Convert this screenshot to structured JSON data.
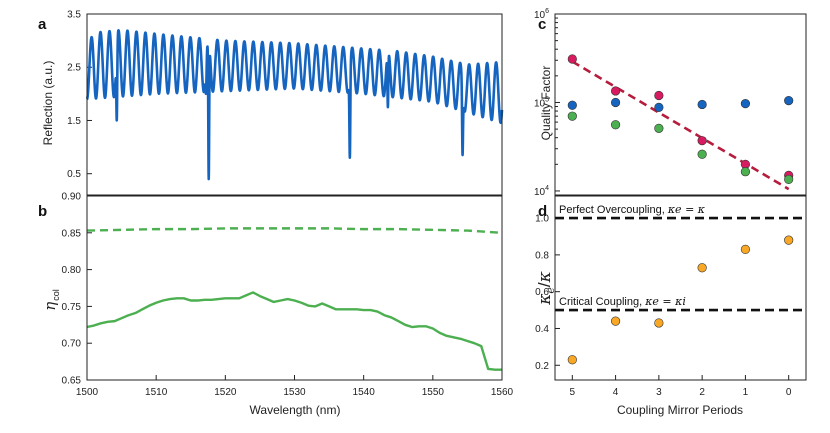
{
  "panel_letters": {
    "a": "a",
    "b": "b",
    "c": "c",
    "d": "d"
  },
  "chart_data": [
    {
      "id": "a",
      "type": "line",
      "ylabel": "Reflection (a.u.)",
      "xlim": [
        1500,
        1560
      ],
      "ylim": [
        0.1,
        3.5
      ],
      "yticks": [
        "0.5",
        "1.5",
        "2.5",
        "3.5"
      ],
      "ytick_values": [
        0.5,
        1.5,
        2.5,
        3.5
      ],
      "color": "#1565c0",
      "series": [
        {
          "oscillation_period_nm": 1.3,
          "upper_envelope": [
            [
              1500,
              2.9
            ],
            [
              1501,
              3.15
            ],
            [
              1505,
              3.2
            ],
            [
              1512,
              3.1
            ],
            [
              1520,
              3.0
            ],
            [
              1530,
              2.95
            ],
            [
              1540,
              2.85
            ],
            [
              1545,
              2.8
            ],
            [
              1550,
              2.7
            ],
            [
              1555,
              2.55
            ],
            [
              1560,
              2.6
            ]
          ],
          "lower_envelope": [
            [
              1500,
              1.9
            ],
            [
              1510,
              2.0
            ],
            [
              1520,
              2.05
            ],
            [
              1530,
              2.1
            ],
            [
              1540,
              2.0
            ],
            [
              1550,
              1.85
            ],
            [
              1560,
              1.45
            ]
          ],
          "dips": [
            [
              1504.3,
              1.5
            ],
            [
              1517.2,
              2.0
            ],
            [
              1517.6,
              0.4
            ],
            [
              1538.0,
              0.8
            ],
            [
              1543.5,
              1.75
            ],
            [
              1554.3,
              0.85
            ]
          ]
        }
      ]
    },
    {
      "id": "b",
      "type": "line",
      "ylabel": "η col",
      "xlabel": "Wavelength (nm)",
      "xlim": [
        1500,
        1560
      ],
      "ylim": [
        0.65,
        0.9
      ],
      "xticks": [
        "1500",
        "1510",
        "1520",
        "1530",
        "1540",
        "1550",
        "1560"
      ],
      "xtick_values": [
        1500,
        1510,
        1520,
        1530,
        1540,
        1550,
        1560
      ],
      "yticks": [
        "0.65",
        "0.70",
        "0.75",
        "0.80",
        "0.85",
        "0.90"
      ],
      "ytick_values": [
        0.65,
        0.7,
        0.75,
        0.8,
        0.85,
        0.9
      ],
      "color": "#4caf50",
      "series": [
        {
          "style": "dashed",
          "x": [
            1500,
            1505,
            1510,
            1515,
            1520,
            1525,
            1530,
            1535,
            1540,
            1545,
            1550,
            1555,
            1560
          ],
          "y": [
            0.853,
            0.854,
            0.855,
            0.855,
            0.856,
            0.856,
            0.856,
            0.856,
            0.855,
            0.855,
            0.854,
            0.853,
            0.85
          ]
        },
        {
          "style": "solid",
          "x": [
            1500,
            1501,
            1502,
            1503,
            1504,
            1505,
            1506,
            1507,
            1508,
            1509,
            1510,
            1511,
            1512,
            1513,
            1514,
            1515,
            1516,
            1517,
            1518,
            1519,
            1520,
            1521,
            1522,
            1523,
            1524,
            1525,
            1526,
            1527,
            1528,
            1529,
            1530,
            1531,
            1532,
            1533,
            1534,
            1535,
            1536,
            1537,
            1538,
            1539,
            1540,
            1541,
            1542,
            1543,
            1544,
            1545,
            1546,
            1547,
            1548,
            1549,
            1550,
            1551,
            1552,
            1553,
            1554,
            1555,
            1556,
            1557,
            1558,
            1559,
            1560
          ],
          "y": [
            0.722,
            0.724,
            0.727,
            0.729,
            0.73,
            0.734,
            0.738,
            0.741,
            0.746,
            0.751,
            0.755,
            0.758,
            0.76,
            0.761,
            0.761,
            0.758,
            0.758,
            0.759,
            0.759,
            0.76,
            0.761,
            0.761,
            0.761,
            0.765,
            0.769,
            0.764,
            0.76,
            0.756,
            0.758,
            0.76,
            0.758,
            0.755,
            0.751,
            0.75,
            0.754,
            0.75,
            0.746,
            0.746,
            0.746,
            0.746,
            0.745,
            0.745,
            0.743,
            0.738,
            0.735,
            0.73,
            0.725,
            0.722,
            0.723,
            0.723,
            0.72,
            0.714,
            0.71,
            0.708,
            0.706,
            0.703,
            0.7,
            0.696,
            0.665,
            0.664,
            0.664
          ]
        }
      ]
    },
    {
      "id": "c",
      "type": "scatter",
      "ylabel": "Quality Factor",
      "yscale": "log",
      "ylim": [
        9000,
        1000000
      ],
      "ytick_values": [
        10000,
        100000,
        1000000
      ],
      "yticks": [
        {
          "base": "10",
          "exp": "4"
        },
        {
          "base": "10",
          "exp": "5"
        },
        {
          "base": "10",
          "exp": "6"
        }
      ],
      "x": [
        5,
        4,
        3,
        2,
        1,
        0
      ],
      "xlim": [
        5.4,
        -0.4
      ],
      "series": [
        {
          "color": "#1565c0",
          "values": [
            93000,
            100000,
            88000,
            95000,
            97000,
            105000
          ]
        },
        {
          "color": "#d81b60",
          "values": [
            310000,
            135000,
            120000,
            37000,
            20000,
            15000
          ]
        },
        {
          "color": "#4caf50",
          "values": [
            70000,
            56000,
            51000,
            26000,
            16500,
            13500
          ]
        }
      ],
      "fit_line": {
        "color": "#b71c3c",
        "style": "dashed",
        "from": [
          5,
          290000
        ],
        "to": [
          0,
          10500
        ]
      }
    },
    {
      "id": "d",
      "type": "scatter",
      "xlabel": "Coupling Mirror Periods",
      "ylabel": "κe / κ",
      "ylim": [
        0.12,
        1.12
      ],
      "yticks": [
        "0.2",
        "0.4",
        "0.6",
        "0.8",
        "1.0"
      ],
      "ytick_values": [
        0.2,
        0.4,
        0.6,
        0.8,
        1.0
      ],
      "xticks": [
        "5",
        "4",
        "3",
        "2",
        "1",
        "0"
      ],
      "x": [
        5,
        4,
        3,
        2,
        1,
        0
      ],
      "xlim": [
        5.4,
        -0.4
      ],
      "color": "#f9a825",
      "values": [
        0.23,
        0.44,
        0.43,
        0.73,
        0.83,
        0.88
      ],
      "hlines": [
        {
          "y": 1.0,
          "label": "Perfect Overcoupling,",
          "eq": "κe = κ"
        },
        {
          "y": 0.5,
          "label": "Critical Coupling,",
          "eq": "κe = κi"
        }
      ]
    }
  ]
}
